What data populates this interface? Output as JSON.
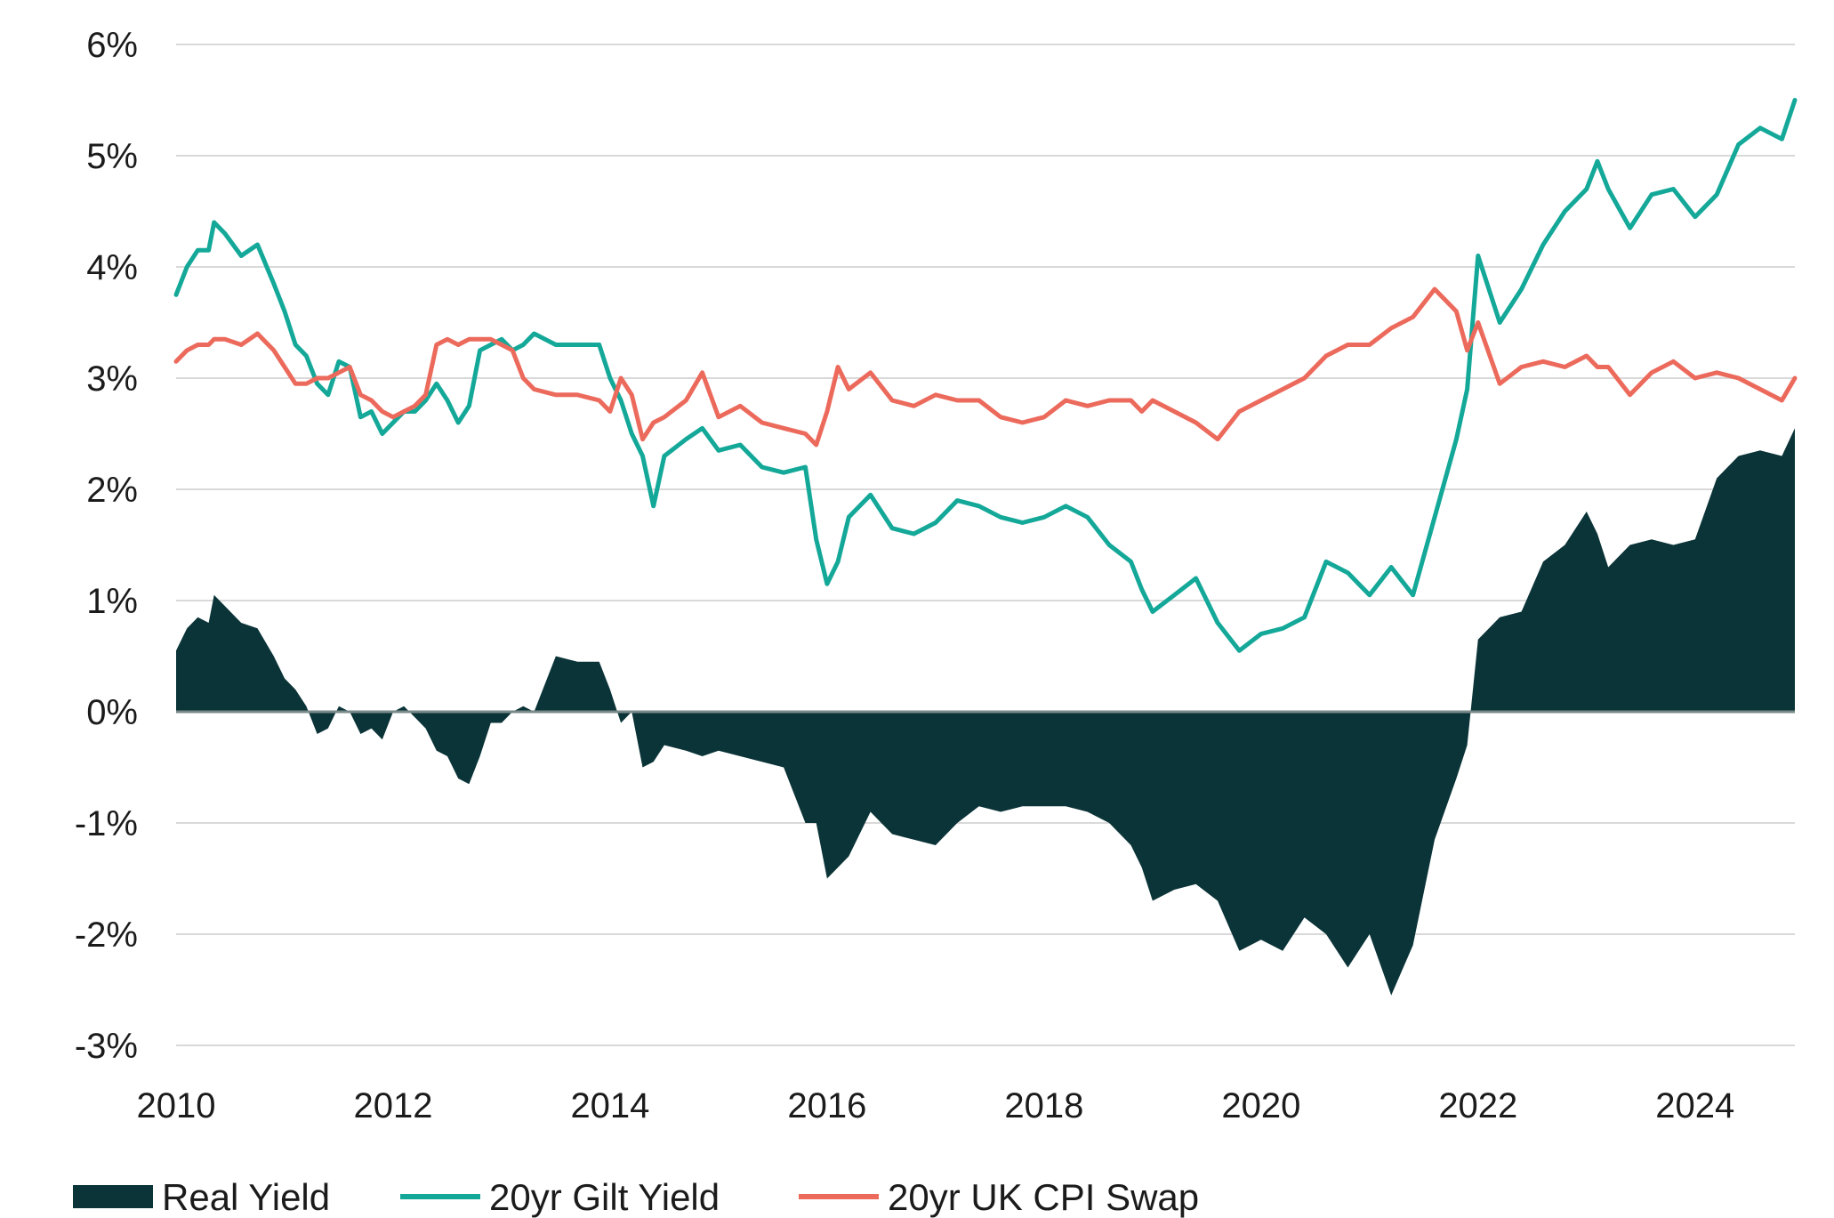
{
  "chart_data": {
    "type": "line",
    "title": "",
    "xlabel": "",
    "ylabel": "",
    "xlim": [
      2010,
      2024.92
    ],
    "ylim": [
      -3,
      6
    ],
    "grid": true,
    "legend_position": "bottom",
    "y_ticks": [
      "6%",
      "5%",
      "4%",
      "3%",
      "2%",
      "1%",
      "0%",
      "-1%",
      "-2%",
      "-3%"
    ],
    "y_tick_values": [
      6,
      5,
      4,
      3,
      2,
      1,
      0,
      -1,
      -2,
      -3
    ],
    "x_ticks": [
      "2010",
      "2012",
      "2014",
      "2016",
      "2018",
      "2020",
      "2022",
      "2024"
    ],
    "x_tick_values": [
      2010,
      2012,
      2014,
      2016,
      2018,
      2020,
      2022,
      2024
    ],
    "series": [
      {
        "name": "Real Yield",
        "style": "area",
        "color": "#0b3438",
        "x": [
          2010.0,
          2010.1,
          2010.2,
          2010.3,
          2010.35,
          2010.45,
          2010.6,
          2010.75,
          2010.9,
          2011.0,
          2011.1,
          2011.2,
          2011.3,
          2011.4,
          2011.5,
          2011.6,
          2011.7,
          2011.8,
          2011.9,
          2012.0,
          2012.1,
          2012.2,
          2012.3,
          2012.4,
          2012.5,
          2012.6,
          2012.7,
          2012.8,
          2012.9,
          2013.0,
          2013.1,
          2013.2,
          2013.3,
          2013.5,
          2013.7,
          2013.9,
          2014.0,
          2014.1,
          2014.2,
          2014.3,
          2014.4,
          2014.5,
          2014.7,
          2014.85,
          2015.0,
          2015.2,
          2015.4,
          2015.6,
          2015.8,
          2015.9,
          2016.0,
          2016.1,
          2016.2,
          2016.4,
          2016.6,
          2016.8,
          2017.0,
          2017.2,
          2017.4,
          2017.6,
          2017.8,
          2018.0,
          2018.2,
          2018.4,
          2018.6,
          2018.8,
          2018.9,
          2019.0,
          2019.2,
          2019.4,
          2019.6,
          2019.8,
          2020.0,
          2020.2,
          2020.4,
          2020.6,
          2020.8,
          2021.0,
          2021.2,
          2021.4,
          2021.6,
          2021.8,
          2021.9,
          2022.0,
          2022.2,
          2022.4,
          2022.6,
          2022.8,
          2023.0,
          2023.1,
          2023.2,
          2023.4,
          2023.6,
          2023.8,
          2024.0,
          2024.2,
          2024.4,
          2024.6,
          2024.8,
          2024.92
        ],
        "values": [
          0.55,
          0.75,
          0.85,
          0.8,
          1.05,
          0.95,
          0.8,
          0.75,
          0.5,
          0.3,
          0.2,
          0.05,
          -0.2,
          -0.15,
          0.05,
          0.0,
          -0.2,
          -0.15,
          -0.25,
          0.0,
          0.05,
          -0.05,
          -0.15,
          -0.35,
          -0.4,
          -0.6,
          -0.65,
          -0.4,
          -0.1,
          -0.1,
          0.0,
          0.05,
          0.0,
          0.5,
          0.45,
          0.45,
          0.2,
          -0.1,
          0.0,
          -0.5,
          -0.45,
          -0.3,
          -0.35,
          -0.4,
          -0.35,
          -0.4,
          -0.45,
          -0.5,
          -1.0,
          -1.0,
          -1.5,
          -1.4,
          -1.3,
          -0.9,
          -1.1,
          -1.15,
          -1.2,
          -1.0,
          -0.85,
          -0.9,
          -0.85,
          -0.85,
          -0.85,
          -0.9,
          -1.0,
          -1.2,
          -1.4,
          -1.7,
          -1.6,
          -1.55,
          -1.7,
          -2.15,
          -2.05,
          -2.15,
          -1.85,
          -2.0,
          -2.3,
          -2.0,
          -2.55,
          -2.1,
          -1.15,
          -0.6,
          -0.3,
          0.65,
          0.85,
          0.9,
          1.35,
          1.5,
          1.8,
          1.6,
          1.3,
          1.5,
          1.55,
          1.5,
          1.55,
          2.1,
          2.3,
          2.35,
          2.3,
          2.55
        ]
      },
      {
        "name": "20yr Gilt Yield",
        "style": "line",
        "color": "#14a899",
        "x": [
          2010.0,
          2010.1,
          2010.2,
          2010.3,
          2010.35,
          2010.45,
          2010.6,
          2010.75,
          2010.9,
          2011.0,
          2011.1,
          2011.2,
          2011.3,
          2011.4,
          2011.5,
          2011.6,
          2011.7,
          2011.8,
          2011.9,
          2012.0,
          2012.1,
          2012.2,
          2012.3,
          2012.4,
          2012.5,
          2012.6,
          2012.7,
          2012.8,
          2012.9,
          2013.0,
          2013.1,
          2013.2,
          2013.3,
          2013.5,
          2013.7,
          2013.9,
          2014.0,
          2014.1,
          2014.2,
          2014.3,
          2014.4,
          2014.5,
          2014.7,
          2014.85,
          2015.0,
          2015.2,
          2015.4,
          2015.6,
          2015.8,
          2015.9,
          2016.0,
          2016.1,
          2016.2,
          2016.4,
          2016.6,
          2016.8,
          2017.0,
          2017.2,
          2017.4,
          2017.6,
          2017.8,
          2018.0,
          2018.2,
          2018.4,
          2018.6,
          2018.8,
          2018.9,
          2019.0,
          2019.2,
          2019.4,
          2019.6,
          2019.8,
          2020.0,
          2020.2,
          2020.4,
          2020.6,
          2020.8,
          2021.0,
          2021.2,
          2021.4,
          2021.6,
          2021.8,
          2021.9,
          2022.0,
          2022.2,
          2022.4,
          2022.6,
          2022.8,
          2023.0,
          2023.1,
          2023.2,
          2023.4,
          2023.6,
          2023.8,
          2024.0,
          2024.2,
          2024.4,
          2024.6,
          2024.8,
          2024.92
        ],
        "values": [
          3.75,
          4.0,
          4.15,
          4.15,
          4.4,
          4.3,
          4.1,
          4.2,
          3.85,
          3.6,
          3.3,
          3.2,
          2.95,
          2.85,
          3.15,
          3.1,
          2.65,
          2.7,
          2.5,
          2.6,
          2.7,
          2.7,
          2.8,
          2.95,
          2.8,
          2.6,
          2.75,
          3.25,
          3.3,
          3.35,
          3.25,
          3.3,
          3.4,
          3.3,
          3.3,
          3.3,
          3.0,
          2.8,
          2.5,
          2.3,
          1.85,
          2.3,
          2.45,
          2.55,
          2.35,
          2.4,
          2.2,
          2.15,
          2.2,
          1.55,
          1.15,
          1.35,
          1.75,
          1.95,
          1.65,
          1.6,
          1.7,
          1.9,
          1.85,
          1.75,
          1.7,
          1.75,
          1.85,
          1.75,
          1.5,
          1.35,
          1.1,
          0.9,
          1.05,
          1.2,
          0.8,
          0.55,
          0.7,
          0.75,
          0.85,
          1.35,
          1.25,
          1.05,
          1.3,
          1.05,
          1.75,
          2.45,
          2.9,
          4.1,
          3.5,
          3.8,
          4.2,
          4.5,
          4.7,
          4.95,
          4.7,
          4.35,
          4.65,
          4.7,
          4.45,
          4.65,
          5.1,
          5.25,
          5.15,
          5.5
        ]
      },
      {
        "name": "20yr UK CPI Swap",
        "style": "line",
        "color": "#ec6a5c",
        "x": [
          2010.0,
          2010.1,
          2010.2,
          2010.3,
          2010.35,
          2010.45,
          2010.6,
          2010.75,
          2010.9,
          2011.0,
          2011.1,
          2011.2,
          2011.3,
          2011.4,
          2011.5,
          2011.6,
          2011.7,
          2011.8,
          2011.9,
          2012.0,
          2012.1,
          2012.2,
          2012.3,
          2012.4,
          2012.5,
          2012.6,
          2012.7,
          2012.8,
          2012.9,
          2013.0,
          2013.1,
          2013.2,
          2013.3,
          2013.5,
          2013.7,
          2013.9,
          2014.0,
          2014.1,
          2014.2,
          2014.3,
          2014.4,
          2014.5,
          2014.7,
          2014.85,
          2015.0,
          2015.2,
          2015.4,
          2015.6,
          2015.8,
          2015.9,
          2016.0,
          2016.1,
          2016.2,
          2016.4,
          2016.6,
          2016.8,
          2017.0,
          2017.2,
          2017.4,
          2017.6,
          2017.8,
          2018.0,
          2018.2,
          2018.4,
          2018.6,
          2018.8,
          2018.9,
          2019.0,
          2019.2,
          2019.4,
          2019.6,
          2019.8,
          2020.0,
          2020.2,
          2020.4,
          2020.6,
          2020.8,
          2021.0,
          2021.2,
          2021.4,
          2021.6,
          2021.8,
          2021.9,
          2022.0,
          2022.2,
          2022.4,
          2022.6,
          2022.8,
          2023.0,
          2023.1,
          2023.2,
          2023.4,
          2023.6,
          2023.8,
          2024.0,
          2024.2,
          2024.4,
          2024.6,
          2024.8,
          2024.92
        ],
        "values": [
          3.15,
          3.25,
          3.3,
          3.3,
          3.35,
          3.35,
          3.3,
          3.4,
          3.25,
          3.1,
          2.95,
          2.95,
          3.0,
          3.0,
          3.05,
          3.1,
          2.85,
          2.8,
          2.7,
          2.65,
          2.7,
          2.75,
          2.85,
          3.3,
          3.35,
          3.3,
          3.35,
          3.35,
          3.35,
          3.3,
          3.25,
          3.0,
          2.9,
          2.85,
          2.85,
          2.8,
          2.7,
          3.0,
          2.85,
          2.45,
          2.6,
          2.65,
          2.8,
          3.05,
          2.65,
          2.75,
          2.6,
          2.55,
          2.5,
          2.4,
          2.7,
          3.1,
          2.9,
          3.05,
          2.8,
          2.75,
          2.85,
          2.8,
          2.8,
          2.65,
          2.6,
          2.65,
          2.8,
          2.75,
          2.8,
          2.8,
          2.7,
          2.8,
          2.7,
          2.6,
          2.45,
          2.7,
          2.8,
          2.9,
          3.0,
          3.2,
          3.3,
          3.3,
          3.45,
          3.55,
          3.8,
          3.6,
          3.25,
          3.5,
          2.95,
          3.1,
          3.15,
          3.1,
          3.2,
          3.1,
          3.1,
          2.85,
          3.05,
          3.15,
          3.0,
          3.05,
          3.0,
          2.9,
          2.8,
          3.0
        ]
      }
    ]
  }
}
